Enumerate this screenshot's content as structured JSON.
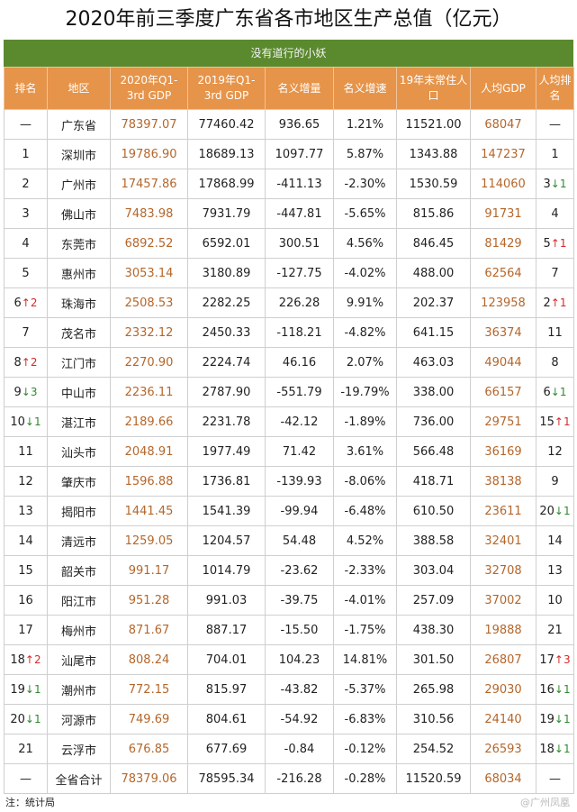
{
  "title": "2020年前三季度广东省各市地区生产总值（亿元）",
  "subtitle": "没有道行的小妖",
  "headers": [
    "排名",
    "地区",
    "2020年Q1-3rd GDP",
    "2019年Q1-3rd GDP",
    "名义增量",
    "名义增速",
    "19年末常住人口",
    "人均GDP",
    "人均排名"
  ],
  "rows": [
    {
      "rank": "—",
      "rank_arrow": "",
      "rank_change": "",
      "region": "广东省",
      "gdp2020": "78397.07",
      "gdp2019": "77460.42",
      "increase": "936.65",
      "growth": "1.21%",
      "population": "11521.00",
      "per_capita": "68047",
      "pc_rank": "—",
      "pc_arrow": "",
      "pc_change": ""
    },
    {
      "rank": "1",
      "rank_arrow": "",
      "rank_change": "",
      "region": "深圳市",
      "gdp2020": "19786.90",
      "gdp2019": "18689.13",
      "increase": "1097.77",
      "growth": "5.87%",
      "population": "1343.88",
      "per_capita": "147237",
      "pc_rank": "1",
      "pc_arrow": "",
      "pc_change": ""
    },
    {
      "rank": "2",
      "rank_arrow": "",
      "rank_change": "",
      "region": "广州市",
      "gdp2020": "17457.86",
      "gdp2019": "17868.99",
      "increase": "-411.13",
      "growth": "-2.30%",
      "population": "1530.59",
      "per_capita": "114060",
      "pc_rank": "3",
      "pc_arrow": "down",
      "pc_change": "1"
    },
    {
      "rank": "3",
      "rank_arrow": "",
      "rank_change": "",
      "region": "佛山市",
      "gdp2020": "7483.98",
      "gdp2019": "7931.79",
      "increase": "-447.81",
      "growth": "-5.65%",
      "population": "815.86",
      "per_capita": "91731",
      "pc_rank": "4",
      "pc_arrow": "",
      "pc_change": ""
    },
    {
      "rank": "4",
      "rank_arrow": "",
      "rank_change": "",
      "region": "东莞市",
      "gdp2020": "6892.52",
      "gdp2019": "6592.01",
      "increase": "300.51",
      "growth": "4.56%",
      "population": "846.45",
      "per_capita": "81429",
      "pc_rank": "5",
      "pc_arrow": "up",
      "pc_change": "1"
    },
    {
      "rank": "5",
      "rank_arrow": "",
      "rank_change": "",
      "region": "惠州市",
      "gdp2020": "3053.14",
      "gdp2019": "3180.89",
      "increase": "-127.75",
      "growth": "-4.02%",
      "population": "488.00",
      "per_capita": "62564",
      "pc_rank": "7",
      "pc_arrow": "",
      "pc_change": ""
    },
    {
      "rank": "6",
      "rank_arrow": "up",
      "rank_change": "2",
      "region": "珠海市",
      "gdp2020": "2508.53",
      "gdp2019": "2282.25",
      "increase": "226.28",
      "growth": "9.91%",
      "population": "202.37",
      "per_capita": "123958",
      "pc_rank": "2",
      "pc_arrow": "up",
      "pc_change": "1"
    },
    {
      "rank": "7",
      "rank_arrow": "",
      "rank_change": "",
      "region": "茂名市",
      "gdp2020": "2332.12",
      "gdp2019": "2450.33",
      "increase": "-118.21",
      "growth": "-4.82%",
      "population": "641.15",
      "per_capita": "36374",
      "pc_rank": "11",
      "pc_arrow": "",
      "pc_change": ""
    },
    {
      "rank": "8",
      "rank_arrow": "up",
      "rank_change": "2",
      "region": "江门市",
      "gdp2020": "2270.90",
      "gdp2019": "2224.74",
      "increase": "46.16",
      "growth": "2.07%",
      "population": "463.03",
      "per_capita": "49044",
      "pc_rank": "8",
      "pc_arrow": "",
      "pc_change": ""
    },
    {
      "rank": "9",
      "rank_arrow": "down",
      "rank_change": "3",
      "region": "中山市",
      "gdp2020": "2236.11",
      "gdp2019": "2787.90",
      "increase": "-551.79",
      "growth": "-19.79%",
      "population": "338.00",
      "per_capita": "66157",
      "pc_rank": "6",
      "pc_arrow": "down",
      "pc_change": "1"
    },
    {
      "rank": "10",
      "rank_arrow": "down",
      "rank_change": "1",
      "region": "湛江市",
      "gdp2020": "2189.66",
      "gdp2019": "2231.78",
      "increase": "-42.12",
      "growth": "-1.89%",
      "population": "736.00",
      "per_capita": "29751",
      "pc_rank": "15",
      "pc_arrow": "up",
      "pc_change": "1"
    },
    {
      "rank": "11",
      "rank_arrow": "",
      "rank_change": "",
      "region": "汕头市",
      "gdp2020": "2048.91",
      "gdp2019": "1977.49",
      "increase": "71.42",
      "growth": "3.61%",
      "population": "566.48",
      "per_capita": "36169",
      "pc_rank": "12",
      "pc_arrow": "",
      "pc_change": ""
    },
    {
      "rank": "12",
      "rank_arrow": "",
      "rank_change": "",
      "region": "肇庆市",
      "gdp2020": "1596.88",
      "gdp2019": "1736.81",
      "increase": "-139.93",
      "growth": "-8.06%",
      "population": "418.71",
      "per_capita": "38138",
      "pc_rank": "9",
      "pc_arrow": "",
      "pc_change": ""
    },
    {
      "rank": "13",
      "rank_arrow": "",
      "rank_change": "",
      "region": "揭阳市",
      "gdp2020": "1441.45",
      "gdp2019": "1541.39",
      "increase": "-99.94",
      "growth": "-6.48%",
      "population": "610.50",
      "per_capita": "23611",
      "pc_rank": "20",
      "pc_arrow": "down",
      "pc_change": "1"
    },
    {
      "rank": "14",
      "rank_arrow": "",
      "rank_change": "",
      "region": "清远市",
      "gdp2020": "1259.05",
      "gdp2019": "1204.57",
      "increase": "54.48",
      "growth": "4.52%",
      "population": "388.58",
      "per_capita": "32401",
      "pc_rank": "14",
      "pc_arrow": "",
      "pc_change": ""
    },
    {
      "rank": "15",
      "rank_arrow": "",
      "rank_change": "",
      "region": "韶关市",
      "gdp2020": "991.17",
      "gdp2019": "1014.79",
      "increase": "-23.62",
      "growth": "-2.33%",
      "population": "303.04",
      "per_capita": "32708",
      "pc_rank": "13",
      "pc_arrow": "",
      "pc_change": ""
    },
    {
      "rank": "16",
      "rank_arrow": "",
      "rank_change": "",
      "region": "阳江市",
      "gdp2020": "951.28",
      "gdp2019": "991.03",
      "increase": "-39.75",
      "growth": "-4.01%",
      "population": "257.09",
      "per_capita": "37002",
      "pc_rank": "10",
      "pc_arrow": "",
      "pc_change": ""
    },
    {
      "rank": "17",
      "rank_arrow": "",
      "rank_change": "",
      "region": "梅州市",
      "gdp2020": "871.67",
      "gdp2019": "887.17",
      "increase": "-15.50",
      "growth": "-1.75%",
      "population": "438.30",
      "per_capita": "19888",
      "pc_rank": "21",
      "pc_arrow": "",
      "pc_change": ""
    },
    {
      "rank": "18",
      "rank_arrow": "up",
      "rank_change": "2",
      "region": "汕尾市",
      "gdp2020": "808.24",
      "gdp2019": "704.01",
      "increase": "104.23",
      "growth": "14.81%",
      "population": "301.50",
      "per_capita": "26807",
      "pc_rank": "17",
      "pc_arrow": "up",
      "pc_change": "3"
    },
    {
      "rank": "19",
      "rank_arrow": "down",
      "rank_change": "1",
      "region": "潮州市",
      "gdp2020": "772.15",
      "gdp2019": "815.97",
      "increase": "-43.82",
      "growth": "-5.37%",
      "population": "265.98",
      "per_capita": "29030",
      "pc_rank": "16",
      "pc_arrow": "down",
      "pc_change": "1"
    },
    {
      "rank": "20",
      "rank_arrow": "down",
      "rank_change": "1",
      "region": "河源市",
      "gdp2020": "749.69",
      "gdp2019": "804.61",
      "increase": "-54.92",
      "growth": "-6.83%",
      "population": "310.56",
      "per_capita": "24140",
      "pc_rank": "19",
      "pc_arrow": "down",
      "pc_change": "1"
    },
    {
      "rank": "21",
      "rank_arrow": "",
      "rank_change": "",
      "region": "云浮市",
      "gdp2020": "676.85",
      "gdp2019": "677.69",
      "increase": "-0.84",
      "growth": "-0.12%",
      "population": "254.52",
      "per_capita": "26593",
      "pc_rank": "18",
      "pc_arrow": "down",
      "pc_change": "1"
    },
    {
      "rank": "—",
      "rank_arrow": "",
      "rank_change": "",
      "region": "全省合计",
      "gdp2020": "78379.06",
      "gdp2019": "78595.34",
      "increase": "-216.28",
      "growth": "-0.28%",
      "population": "11520.59",
      "per_capita": "68034",
      "pc_rank": "—",
      "pc_arrow": "",
      "pc_change": ""
    }
  ],
  "note": "注：统计局",
  "watermark": "@广州凤凰",
  "colors": {
    "title_bar": "#5b8a2e",
    "header": "#e6944a",
    "value_orange": "#b5662a",
    "arrow_up": "#d42a2a",
    "arrow_down": "#2e8a2e"
  },
  "arrow_glyphs": {
    "up": "↑",
    "down": "↓"
  }
}
